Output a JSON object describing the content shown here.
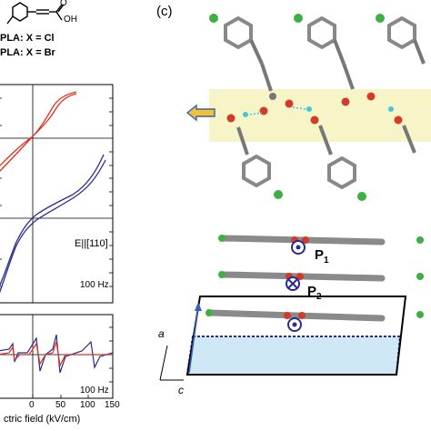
{
  "header": {
    "formula_label_1": "PLA: X = Cl",
    "formula_label_2": "PLA: X = Br",
    "acid_oh": "OH",
    "acid_o": "O",
    "halogen_x": "X"
  },
  "panel_c": {
    "label": "(c)",
    "polarization_1": "P",
    "polarization_1_sub": "1",
    "polarization_2": "P",
    "polarization_2_sub": "2",
    "axis_a": "a",
    "axis_c": "c"
  },
  "colors": {
    "red_curve": "#e0301e",
    "blue_curve": "#2b2b8f",
    "highlight_band": "#f7f5c8",
    "unit_cell_fill": "#cfe8f5",
    "arrow_yellow": "#f2c230",
    "arrow_blue": "#3b5fc0"
  },
  "chart_data": [
    {
      "type": "line",
      "subplot": "upper",
      "annotation_field": "E||[110]",
      "annotation_freq": "100 Hz",
      "series": [
        {
          "color": "red",
          "x": [
            -100,
            -50,
            -20,
            0,
            20,
            40,
            60,
            80,
            100
          ],
          "y": [
            0.1,
            0.2,
            0.3,
            0.45,
            0.55,
            0.7,
            0.85,
            0.9,
            0.95
          ]
        },
        {
          "color": "blue",
          "x": [
            -160,
            -100,
            -50,
            0,
            50,
            100,
            160
          ],
          "y": [
            -1.0,
            -0.7,
            -0.4,
            -0.1,
            0.2,
            0.45,
            0.55
          ]
        }
      ]
    },
    {
      "type": "line",
      "subplot": "lower",
      "xlabel": "ctric field (kV/cm)",
      "annotation_freq": "100 Hz",
      "x_ticks": [
        "0",
        "50",
        "100",
        "150"
      ],
      "xlim": [
        -20,
        160
      ]
    }
  ]
}
